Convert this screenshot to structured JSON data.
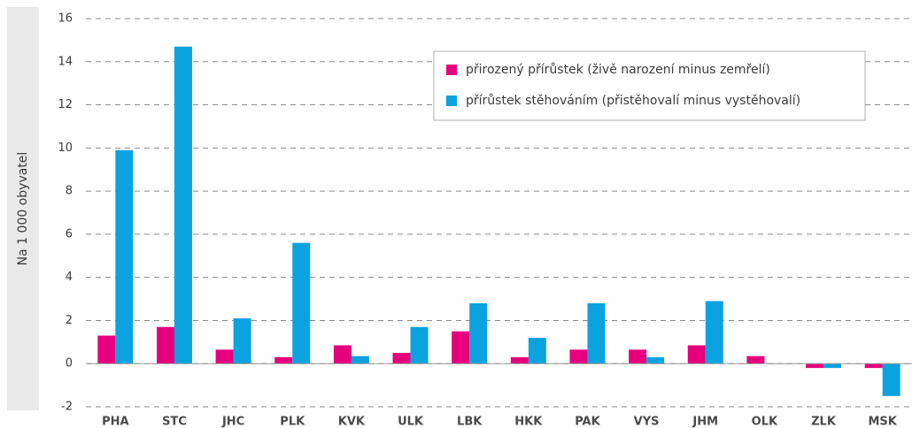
{
  "chart_data": {
    "type": "bar",
    "y_label": "Na 1 000 obyvatel",
    "categories": [
      "PHA",
      "STC",
      "JHC",
      "PLK",
      "KVK",
      "ULK",
      "LBK",
      "HKK",
      "PAK",
      "VYS",
      "JHM",
      "OLK",
      "ZLK",
      "MSK"
    ],
    "series": [
      {
        "name": "přirozený přírůstek (živě narození minus zemřelí)",
        "color": "#e6007e",
        "values": [
          1.3,
          1.7,
          0.65,
          0.3,
          0.85,
          0.5,
          1.5,
          0.3,
          0.65,
          0.65,
          0.85,
          0.35,
          -0.2,
          -0.2
        ]
      },
      {
        "name": "přírůstek stěhováním (přistěhovalí minus vystěhovalí)",
        "color": "#0aa3e0",
        "values": [
          9.9,
          14.7,
          2.1,
          5.6,
          0.35,
          1.7,
          2.8,
          1.2,
          2.8,
          0.3,
          2.9,
          0,
          -0.2,
          -1.5
        ]
      }
    ],
    "ylim": [
      -2,
      16
    ],
    "yticks": [
      -2,
      0,
      2,
      4,
      6,
      8,
      10,
      12,
      14,
      16
    ],
    "grid": true,
    "legend": "top-right"
  }
}
